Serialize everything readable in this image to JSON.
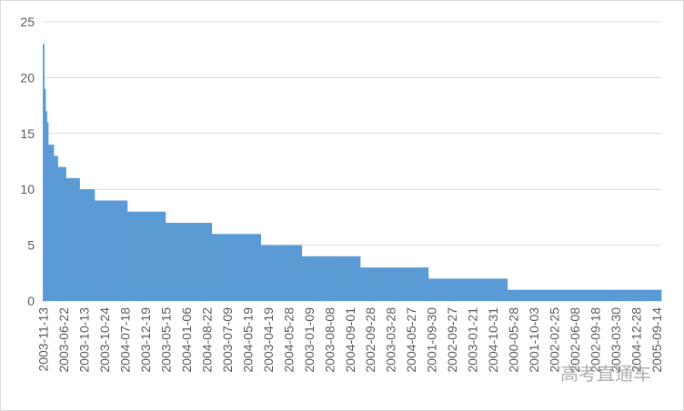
{
  "chart_data": {
    "type": "bar",
    "color": "#5b9bd5",
    "grid": true,
    "ylim": [
      0,
      25
    ],
    "yticks": [
      0,
      5,
      10,
      15,
      20,
      25
    ],
    "watermark": "高考直通车",
    "categories": [
      "2003-11-13",
      null,
      null,
      null,
      null,
      null,
      null,
      null,
      null,
      null,
      null,
      null,
      null,
      null,
      null,
      "2003-06-22",
      null,
      null,
      null,
      null,
      null,
      null,
      null,
      null,
      null,
      null,
      null,
      null,
      null,
      null,
      "2003-10-13",
      null,
      null,
      null,
      null,
      null,
      null,
      null,
      null,
      null,
      null,
      null,
      null,
      null,
      null,
      "2003-10-24",
      null,
      null,
      null,
      null,
      null,
      null,
      null,
      null,
      null,
      null,
      null,
      null,
      null,
      null,
      "2004-07-18",
      null,
      null,
      null,
      null,
      null,
      null,
      null,
      null,
      null,
      null,
      null,
      null,
      null,
      null,
      "2003-12-19",
      null,
      null,
      null,
      null,
      null,
      null,
      null,
      null,
      null,
      null,
      null,
      null,
      null,
      null,
      "2003-05-15",
      null,
      null,
      null,
      null,
      null,
      null,
      null,
      null,
      null,
      null,
      null,
      null,
      null,
      null,
      "2004-01-06",
      null,
      null,
      null,
      null,
      null,
      null,
      null,
      null,
      null,
      null,
      null,
      null,
      null,
      null,
      "2004-08-22",
      null,
      null,
      null,
      null,
      null,
      null,
      null,
      null,
      null,
      null,
      null,
      null,
      null,
      null,
      "2003-07-09",
      null,
      null,
      null,
      null,
      null,
      null,
      null,
      null,
      null,
      null,
      null,
      null,
      null,
      null,
      "2004-05-19",
      null,
      null,
      null,
      null,
      null,
      null,
      null,
      null,
      null,
      null,
      null,
      null,
      null,
      null,
      "2003-04-19",
      null,
      null,
      null,
      null,
      null,
      null,
      null,
      null,
      null,
      null,
      null,
      null,
      null,
      null,
      "2004-05-28",
      null,
      null,
      null,
      null,
      null,
      null,
      null,
      null,
      null,
      null,
      null,
      null,
      null,
      null,
      "2003-01-09",
      null,
      null,
      null,
      null,
      null,
      null,
      null,
      null,
      null,
      null,
      null,
      null,
      null,
      null,
      "2003-08-08",
      null,
      null,
      null,
      null,
      null,
      null,
      null,
      null,
      null,
      null,
      null,
      null,
      null,
      null,
      "2004-09-01",
      null,
      null,
      null,
      null,
      null,
      null,
      null,
      null,
      null,
      null,
      null,
      null,
      null,
      null,
      "2002-09-28",
      null,
      null,
      null,
      null,
      null,
      null,
      null,
      null,
      null,
      null,
      null,
      null,
      null,
      null,
      "2003-03-28",
      null,
      null,
      null,
      null,
      null,
      null,
      null,
      null,
      null,
      null,
      null,
      null,
      null,
      null,
      "2004-05-27",
      null,
      null,
      null,
      null,
      null,
      null,
      null,
      null,
      null,
      null,
      null,
      null,
      null,
      null,
      "2001-09-30",
      null,
      null,
      null,
      null,
      null,
      null,
      null,
      null,
      null,
      null,
      null,
      null,
      null,
      null,
      "2002-09-27",
      null,
      null,
      null,
      null,
      null,
      null,
      null,
      null,
      null,
      null,
      null,
      null,
      null,
      null,
      "2003-01-21",
      null,
      null,
      null,
      null,
      null,
      null,
      null,
      null,
      null,
      null,
      null,
      null,
      null,
      null,
      "2004-10-31",
      null,
      null,
      null,
      null,
      null,
      null,
      null,
      null,
      null,
      null,
      null,
      null,
      null,
      null,
      "2000-05-28",
      null,
      null,
      null,
      null,
      null,
      null,
      null,
      null,
      null,
      null,
      null,
      null,
      null,
      null,
      "2001-10-03",
      null,
      null,
      null,
      null,
      null,
      null,
      null,
      null,
      null,
      null,
      null,
      null,
      null,
      null,
      "2002-02-25",
      null,
      null,
      null,
      null,
      null,
      null,
      null,
      null,
      null,
      null,
      null,
      null,
      null,
      null,
      "2002-06-08",
      null,
      null,
      null,
      null,
      null,
      null,
      null,
      null,
      null,
      null,
      null,
      null,
      null,
      null,
      "2002-09-18",
      null,
      null,
      null,
      null,
      null,
      null,
      null,
      null,
      null,
      null,
      null,
      null,
      null,
      null,
      "2003-03-30",
      null,
      null,
      null,
      null,
      null,
      null,
      null,
      null,
      null,
      null,
      null,
      null,
      null,
      null,
      "2004-12-28",
      null,
      null,
      null,
      null,
      null,
      null,
      null,
      null,
      null,
      null,
      null,
      null,
      null,
      null,
      "2005-09-14",
      null,
      null,
      null
    ],
    "values": [
      23,
      19,
      17,
      16,
      14,
      14,
      14,
      14,
      13,
      13,
      13,
      12,
      12,
      12,
      12,
      12,
      12,
      11,
      11,
      11,
      11,
      11,
      11,
      11,
      11,
      11,
      11,
      10,
      10,
      10,
      10,
      10,
      10,
      10,
      10,
      10,
      10,
      10,
      9,
      9,
      9,
      9,
      9,
      9,
      9,
      9,
      9,
      9,
      9,
      9,
      9,
      9,
      9,
      9,
      9,
      9,
      9,
      9,
      9,
      9,
      9,
      9,
      8,
      8,
      8,
      8,
      8,
      8,
      8,
      8,
      8,
      8,
      8,
      8,
      8,
      8,
      8,
      8,
      8,
      8,
      8,
      8,
      8,
      8,
      8,
      8,
      8,
      8,
      8,
      8,
      7,
      7,
      7,
      7,
      7,
      7,
      7,
      7,
      7,
      7,
      7,
      7,
      7,
      7,
      7,
      7,
      7,
      7,
      7,
      7,
      7,
      7,
      7,
      7,
      7,
      7,
      7,
      7,
      7,
      7,
      7,
      7,
      7,
      7,
      6,
      6,
      6,
      6,
      6,
      6,
      6,
      6,
      6,
      6,
      6,
      6,
      6,
      6,
      6,
      6,
      6,
      6,
      6,
      6,
      6,
      6,
      6,
      6,
      6,
      6,
      6,
      6,
      6,
      6,
      6,
      6,
      6,
      6,
      6,
      6,
      5,
      5,
      5,
      5,
      5,
      5,
      5,
      5,
      5,
      5,
      5,
      5,
      5,
      5,
      5,
      5,
      5,
      5,
      5,
      5,
      5,
      5,
      5,
      5,
      5,
      5,
      5,
      5,
      5,
      5,
      4,
      4,
      4,
      4,
      4,
      4,
      4,
      4,
      4,
      4,
      4,
      4,
      4,
      4,
      4,
      4,
      4,
      4,
      4,
      4,
      4,
      4,
      4,
      4,
      4,
      4,
      4,
      4,
      4,
      4,
      4,
      4,
      4,
      4,
      4,
      4,
      4,
      4,
      4,
      4,
      4,
      4,
      4,
      3,
      3,
      3,
      3,
      3,
      3,
      3,
      3,
      3,
      3,
      3,
      3,
      3,
      3,
      3,
      3,
      3,
      3,
      3,
      3,
      3,
      3,
      3,
      3,
      3,
      3,
      3,
      3,
      3,
      3,
      3,
      3,
      3,
      3,
      3,
      3,
      3,
      3,
      3,
      3,
      3,
      3,
      3,
      3,
      3,
      3,
      3,
      3,
      3,
      3,
      2,
      2,
      2,
      2,
      2,
      2,
      2,
      2,
      2,
      2,
      2,
      2,
      2,
      2,
      2,
      2,
      2,
      2,
      2,
      2,
      2,
      2,
      2,
      2,
      2,
      2,
      2,
      2,
      2,
      2,
      2,
      2,
      2,
      2,
      2,
      2,
      2,
      2,
      2,
      2,
      2,
      2,
      2,
      2,
      2,
      2,
      2,
      2,
      2,
      2,
      2,
      2,
      2,
      2,
      2,
      2,
      2,
      2,
      1,
      1,
      1,
      1,
      1,
      1,
      1,
      1,
      1,
      1,
      1,
      1,
      1,
      1,
      1,
      1,
      1,
      1,
      1,
      1,
      1,
      1,
      1,
      1,
      1,
      1,
      1,
      1,
      1,
      1,
      1,
      1,
      1,
      1,
      1,
      1,
      1,
      1,
      1,
      1,
      1,
      1,
      1,
      1,
      1,
      1,
      1,
      1,
      1,
      1,
      1,
      1,
      1,
      1,
      1,
      1,
      1,
      1,
      1,
      1,
      1,
      1,
      1,
      1,
      1,
      1,
      1,
      1,
      1,
      1,
      1,
      1,
      1,
      1,
      1,
      1,
      1,
      1,
      1,
      1,
      1,
      1,
      1,
      1,
      1,
      1,
      1,
      1,
      1,
      1,
      1,
      1,
      1,
      1,
      1,
      1,
      1,
      1,
      1,
      1,
      1,
      1,
      1,
      1,
      1,
      1,
      1,
      1,
      1,
      1,
      1,
      1,
      1
    ]
  }
}
